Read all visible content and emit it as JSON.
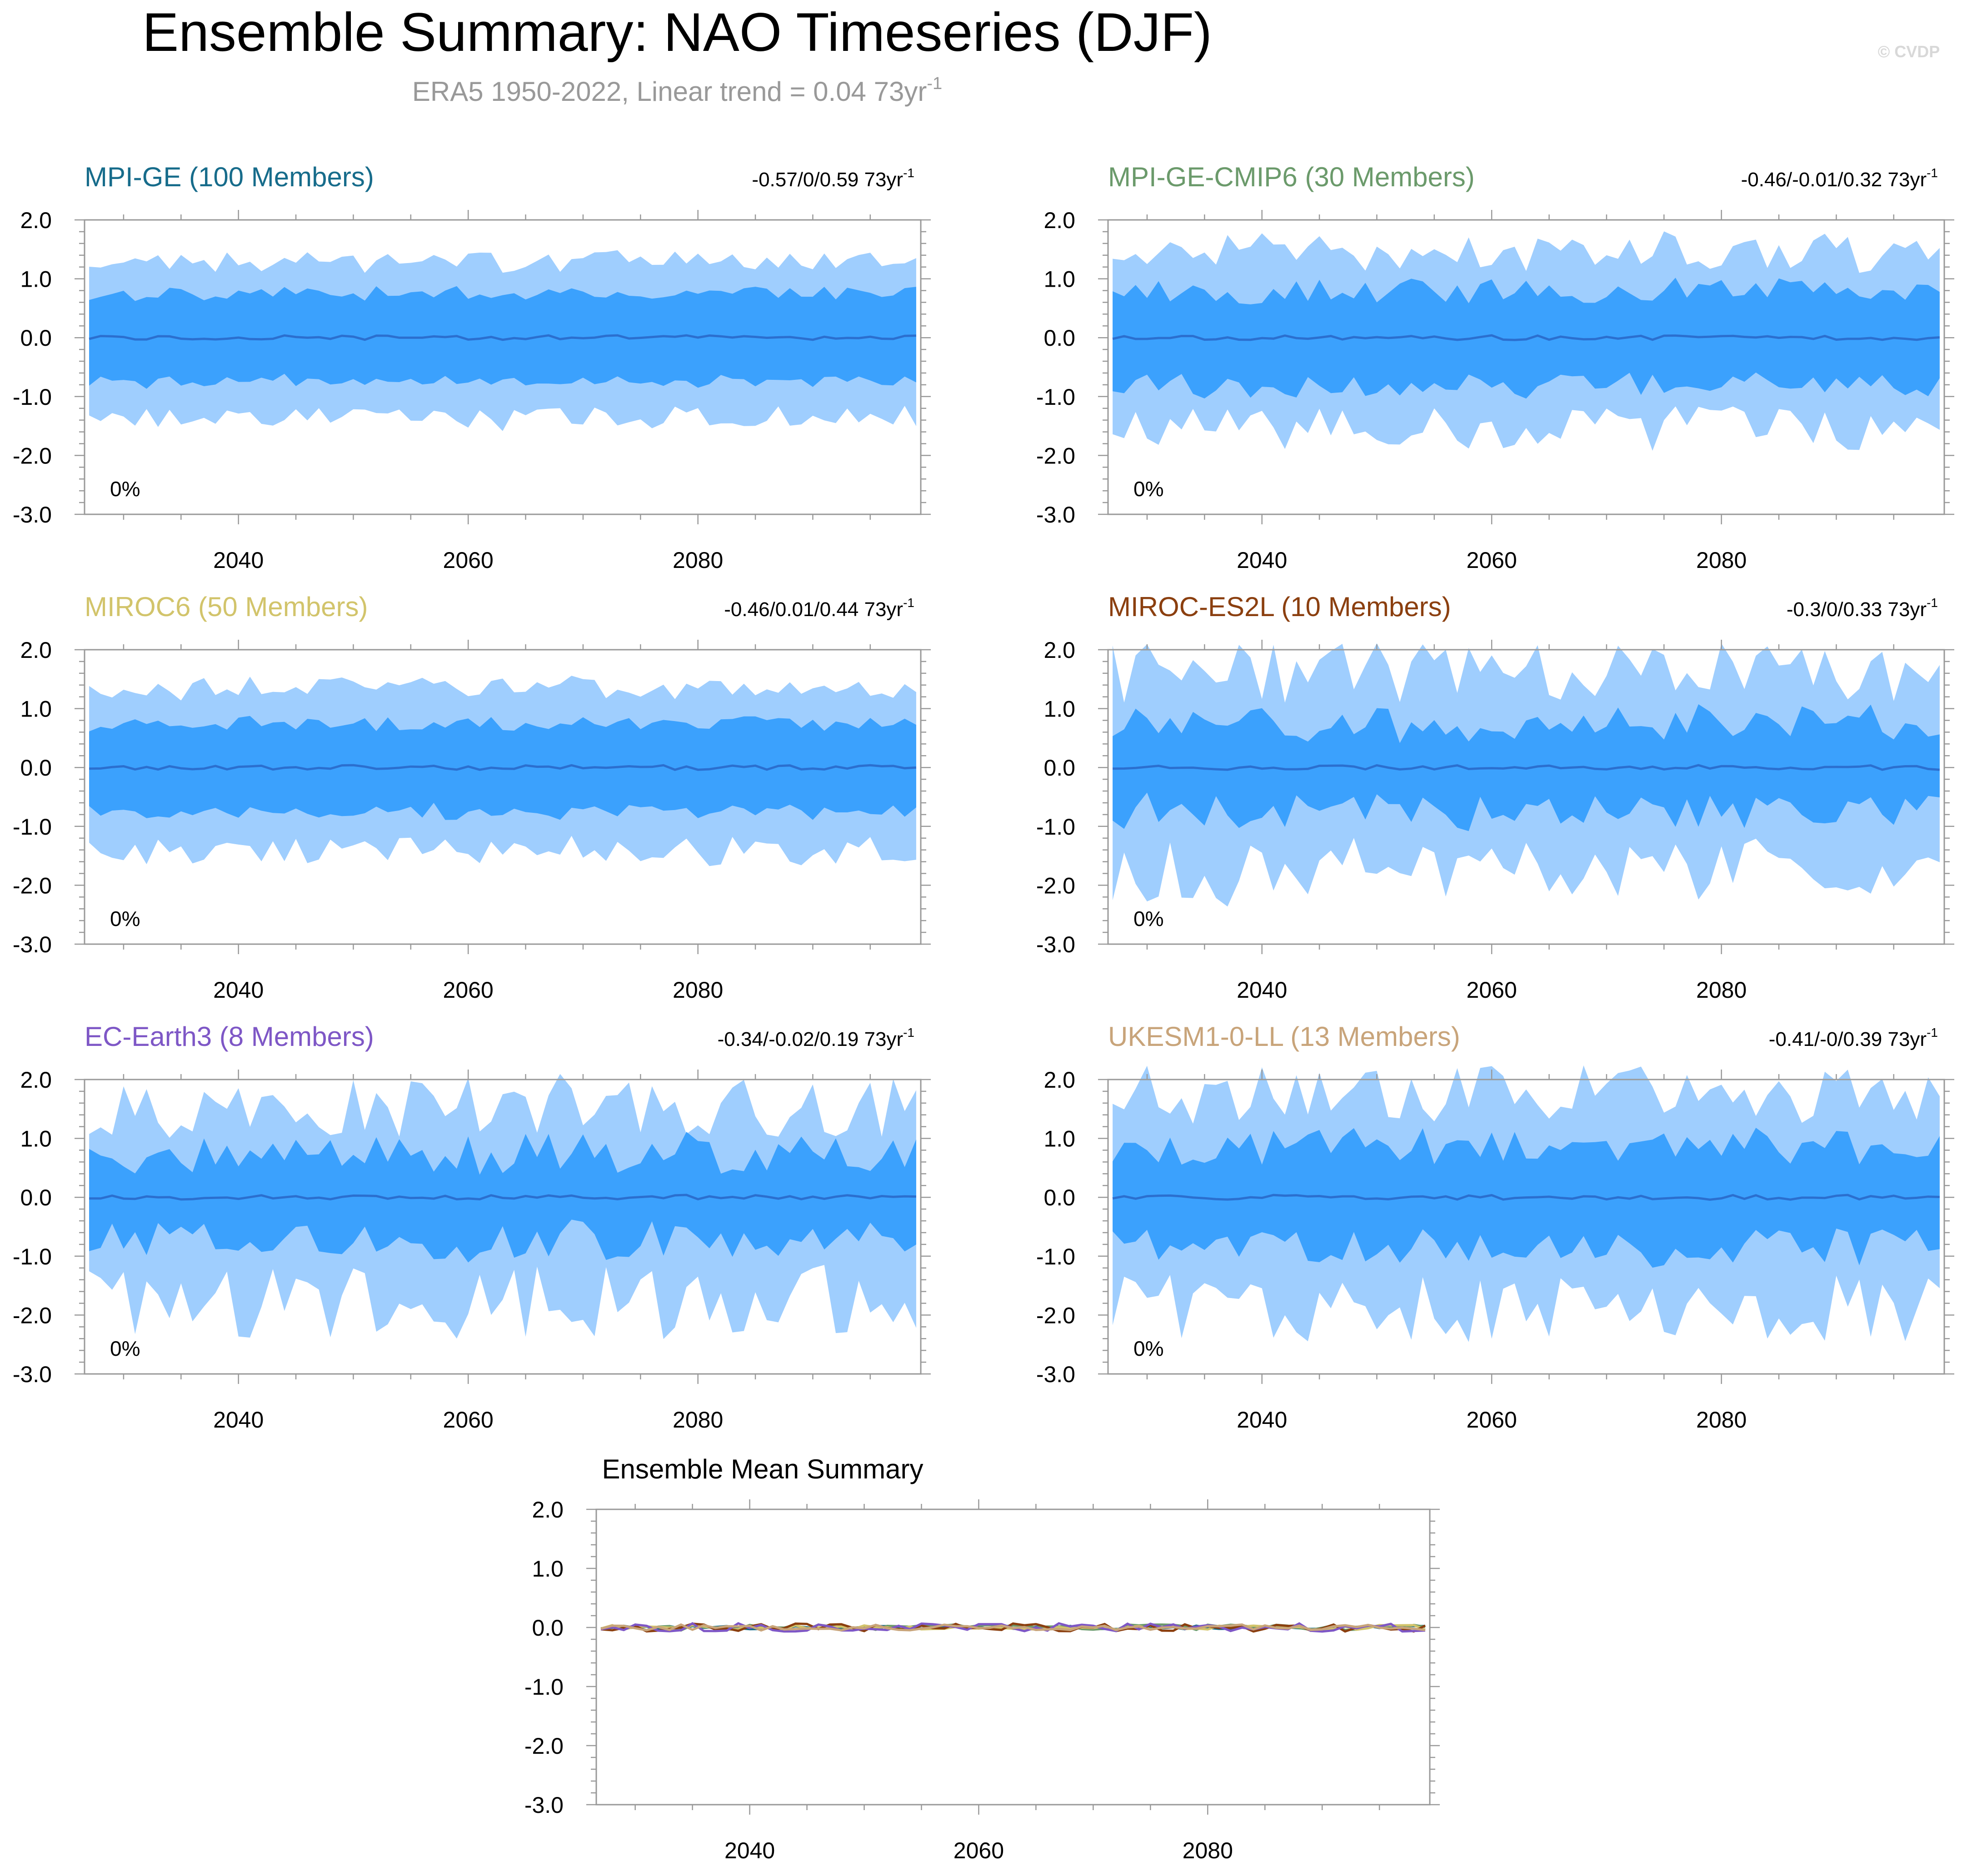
{
  "title": "Ensemble Summary: NAO Timeseries (DJF)",
  "subtitle": "ERA5 1950-2022, Linear trend = 0.04 73yr",
  "subtitle_superscript": "-1",
  "watermark": "© CVDP",
  "colors": {
    "outer_band": "#9fcefe",
    "inner_band": "#3ba1fd",
    "mean_line": "#2b6fcf",
    "axis": "#999999",
    "text": "#000000",
    "subtitle": "#999999"
  },
  "chart_data": [
    {
      "type": "area",
      "name": "MPI-GE (100 Members)",
      "title_color": "#176c8b",
      "trend_label": "-0.57/0/0.59 73yr",
      "trend_superscript": "-1",
      "percent_label": "0%",
      "x_range": [
        2026.6,
        2099.4
      ],
      "ylim": [
        -3.0,
        2.0
      ],
      "yticks": [
        "2.0",
        "1.0",
        "0.0",
        "-1.0",
        "-2.0",
        "-3.0"
      ],
      "xticks": [
        "2040",
        "2060",
        "2080"
      ],
      "amp_outer": 1.3,
      "amp_inner": 0.75,
      "spread_var": 0.15,
      "seed": 11
    },
    {
      "type": "area",
      "name": "MPI-GE-CMIP6 (30 Members)",
      "title_color": "#6b9a6b",
      "trend_label": "-0.46/-0.01/0.32 73yr",
      "trend_superscript": "-1",
      "percent_label": "0%",
      "x_range": [
        2026.6,
        2099.4
      ],
      "ylim": [
        -3.0,
        2.0
      ],
      "yticks": [
        "2.0",
        "1.0",
        "0.0",
        "-1.0",
        "-2.0",
        "-3.0"
      ],
      "xticks": [
        "2040",
        "2060",
        "2080"
      ],
      "amp_outer": 1.45,
      "amp_inner": 0.8,
      "spread_var": 0.3,
      "seed": 23
    },
    {
      "type": "area",
      "name": "MIROC6 (50 Members)",
      "title_color": "#d2c46b",
      "trend_label": "-0.46/0.01/0.44 73yr",
      "trend_superscript": "-1",
      "percent_label": "0%",
      "x_range": [
        2026.6,
        2099.4
      ],
      "ylim": [
        -3.0,
        2.0
      ],
      "yticks": [
        "2.0",
        "1.0",
        "0.0",
        "-1.0",
        "-2.0",
        "-3.0"
      ],
      "xticks": [
        "2040",
        "2060",
        "2080"
      ],
      "amp_outer": 1.35,
      "amp_inner": 0.75,
      "spread_var": 0.18,
      "seed": 37
    },
    {
      "type": "area",
      "name": "MIROC-ES2L (10 Members)",
      "title_color": "#8b3f0f",
      "trend_label": "-0.3/0/0.33 73yr",
      "trend_superscript": "-1",
      "percent_label": "0%",
      "x_range": [
        2026.6,
        2099.4
      ],
      "ylim": [
        -3.0,
        2.0
      ],
      "yticks": [
        "2.0",
        "1.0",
        "0.0",
        "-1.0",
        "-2.0",
        "-3.0"
      ],
      "xticks": [
        "2040",
        "2060",
        "2080"
      ],
      "amp_outer": 1.6,
      "amp_inner": 0.75,
      "spread_var": 0.45,
      "seed": 41
    },
    {
      "type": "area",
      "name": "EC-Earth3 (8 Members)",
      "title_color": "#7e57c6",
      "trend_label": "-0.34/-0.02/0.19 73yr",
      "trend_superscript": "-1",
      "percent_label": "0%",
      "x_range": [
        2026.6,
        2099.4
      ],
      "ylim": [
        -3.0,
        2.0
      ],
      "yticks": [
        "2.0",
        "1.0",
        "0.0",
        "-1.0",
        "-2.0",
        "-3.0"
      ],
      "xticks": [
        "2040",
        "2060",
        "2080"
      ],
      "amp_outer": 1.55,
      "amp_inner": 0.75,
      "spread_var": 0.5,
      "seed": 53
    },
    {
      "type": "area",
      "name": "UKESM1-0-LL (13 Members)",
      "title_color": "#c8a47a",
      "trend_label": "-0.41/-0/0.39 73yr",
      "trend_superscript": "-1",
      "percent_label": "0%",
      "x_range": [
        2026.6,
        2099.4
      ],
      "ylim": [
        -3.0,
        2.0
      ],
      "yticks": [
        "2.0",
        "1.0",
        "0.0",
        "-1.0",
        "-2.0",
        "-3.0"
      ],
      "xticks": [
        "2040",
        "2060",
        "2080"
      ],
      "amp_outer": 1.75,
      "amp_inner": 0.85,
      "spread_var": 0.45,
      "seed": 67
    },
    {
      "type": "line",
      "name": "Ensemble Mean Summary",
      "title_color": "#000000",
      "x_range": [
        2026.6,
        2099.4
      ],
      "ylim": [
        -3.0,
        2.0
      ],
      "yticks": [
        "2.0",
        "1.0",
        "0.0",
        "-1.0",
        "-2.0",
        "-3.0"
      ],
      "xticks": [
        "2040",
        "2060",
        "2080"
      ],
      "series": [
        {
          "name": "MPI-GE",
          "color": "#176c8b",
          "noise": 0.03,
          "seed": 101
        },
        {
          "name": "MPI-GE-CMIP6",
          "color": "#6b9a6b",
          "noise": 0.05,
          "seed": 103
        },
        {
          "name": "MIROC6",
          "color": "#d2c46b",
          "noise": 0.04,
          "seed": 107
        },
        {
          "name": "MIROC-ES2L",
          "color": "#8b3f0f",
          "noise": 0.07,
          "seed": 109
        },
        {
          "name": "EC-Earth3",
          "color": "#7e57c6",
          "noise": 0.07,
          "seed": 113
        },
        {
          "name": "UKESM1-0-LL",
          "color": "#c8a47a",
          "noise": 0.05,
          "seed": 127
        }
      ]
    }
  ]
}
